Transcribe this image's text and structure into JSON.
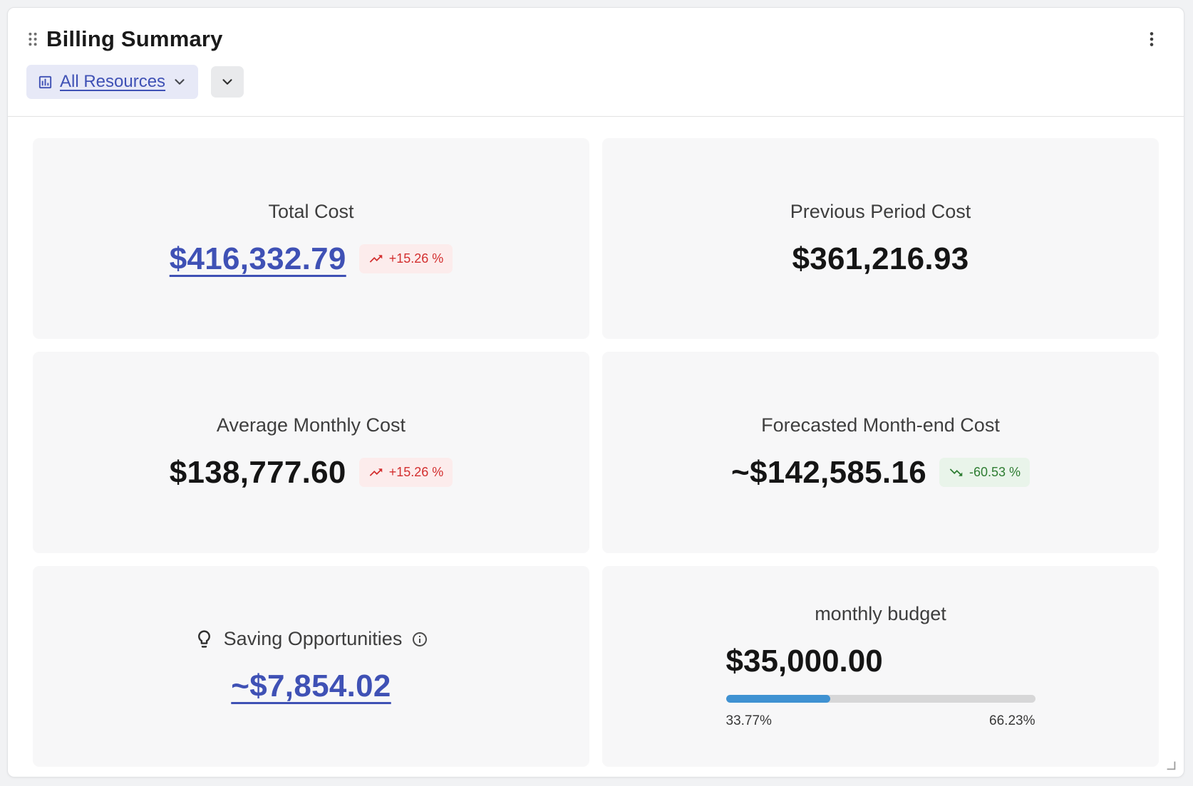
{
  "header": {
    "title": "Billing Summary",
    "resource_filter": {
      "label": "All Resources"
    }
  },
  "tiles": {
    "total_cost": {
      "label": "Total Cost",
      "value": "$416,332.79",
      "badge": "+15.26 %",
      "trend": "up"
    },
    "previous_period_cost": {
      "label": "Previous Period Cost",
      "value": "$361,216.93"
    },
    "average_monthly_cost": {
      "label": "Average Monthly Cost",
      "value": "$138,777.60",
      "badge": "+15.26 %",
      "trend": "up"
    },
    "forecasted_month_end_cost": {
      "label": "Forecasted Month-end Cost",
      "value": "~$142,585.16",
      "badge": "-60.53 %",
      "trend": "down"
    },
    "saving_opportunities": {
      "label": "Saving Opportunities",
      "value": "~$7,854.02"
    },
    "monthly_budget": {
      "label": "monthly budget",
      "value": "$35,000.00",
      "progress_percent": 33.77,
      "used_label": "33.77%",
      "remaining_label": "66.23%"
    }
  },
  "icons": {
    "drag_handle": "six-dot-grip",
    "menu": "vertical-ellipsis",
    "resource_filter": "bar-chart",
    "dropdown": "chevron-down",
    "trend_up": "trending-up-arrow",
    "trend_down": "trending-down-arrow",
    "savings": "lightbulb",
    "info": "info-circle",
    "resize": "corner-resize"
  },
  "colors": {
    "accent_indigo": "#3f51b5",
    "badge_up_text": "#d32f2f",
    "badge_up_bg": "#fcecec",
    "badge_down_text": "#2e7d32",
    "badge_down_bg": "#e9f4ea",
    "progress_fill": "#3f92d2"
  }
}
